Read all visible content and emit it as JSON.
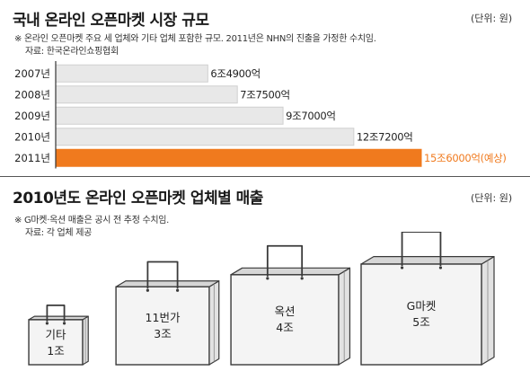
{
  "chart_data": [
    {
      "type": "bar",
      "orientation": "horizontal",
      "title": "국내 온라인 오픈마켓 시장 규모",
      "unit": "(단위: 원)",
      "notes": [
        "※ 온라인 오픈마켓 주요 세 업체와 기타 업체 포함한 규모. 2011년은 NHN의 진출을 가정한 수치임.",
        "자료: 한국온라인쇼핑협회"
      ],
      "categories": [
        "2007년",
        "2008년",
        "2009년",
        "2010년",
        "2011년"
      ],
      "values": [
        6.49,
        7.75,
        9.7,
        12.72,
        15.6
      ],
      "value_unit": "조",
      "data_labels": [
        "6조4900억",
        "7조7500억",
        "9조7000억",
        "12조7200억",
        "15조6000억(예상)"
      ],
      "highlight_index": 4,
      "colors": {
        "bar": "#e8e8e8",
        "bar_border": "#cfcfcf",
        "highlight": "#f07a1e",
        "highlight_label": "#f07a1e",
        "axis": "#333333"
      },
      "xlim": [
        0,
        15.6
      ]
    },
    {
      "type": "bar",
      "style": "shopping-bag pictogram",
      "title": "2010년도 온라인 오픈마켓 업체별 매출",
      "unit": "(단위: 원)",
      "notes": [
        "※ G마켓·옥션 매출은 공시 전 추정 수치임.",
        "자료: 각 업체 제공"
      ],
      "categories": [
        "기타",
        "11번가",
        "옥션",
        "G마켓"
      ],
      "values": [
        1,
        3,
        4,
        5
      ],
      "value_unit": "조",
      "data_labels": [
        "1조",
        "3조",
        "4조",
        "5조"
      ],
      "colors": {
        "bag_fill": "#f4f4f4",
        "bag_stroke": "#3a3a3a"
      }
    }
  ]
}
